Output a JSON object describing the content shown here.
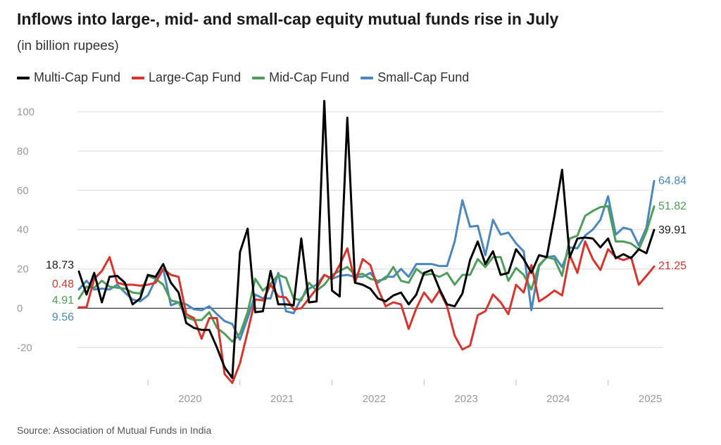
{
  "chart_data": {
    "type": "line",
    "title": "Inflows into large-, mid- and small-cap equity mutual funds rise in July",
    "subtitle": "(in billion rupees)",
    "source": "Source: Association of Mutual Funds in India",
    "ylim": [
      -38,
      105
    ],
    "yticks": [
      {
        "value": 100,
        "label": "100"
      },
      {
        "value": 80,
        "label": "80"
      },
      {
        "value": 60,
        "label": "60"
      },
      {
        "value": 40,
        "label": "40"
      },
      {
        "value": 20,
        "label": "20"
      },
      {
        "value": 0,
        "label": "0"
      },
      {
        "value": -20,
        "label": "-20"
      }
    ],
    "xticks": [
      "2020",
      "2021",
      "2022",
      "2023",
      "2024",
      "2025"
    ],
    "start": "2019-04",
    "end": "2025-07",
    "grid": true,
    "legend_position": "top-left",
    "series": [
      {
        "name": "Multi-Cap Fund",
        "color": "#000000",
        "start_label": "18.73",
        "end_label": "39.91",
        "values": [
          18.7,
          7,
          18,
          3,
          16,
          16.5,
          13,
          2,
          5,
          17,
          16,
          22.5,
          13,
          8,
          -7.5,
          -10,
          -11,
          -11,
          -20,
          -30,
          -35.5,
          28.5,
          40.5,
          -2,
          -1.5,
          19,
          2,
          2,
          1.5,
          35.5,
          3,
          3.5,
          105.5,
          9,
          6,
          97,
          13,
          12,
          10,
          5,
          3.5,
          6.5,
          8,
          2,
          7,
          18,
          19.5,
          10,
          2,
          1,
          7.5,
          24.5,
          34,
          22.5,
          29,
          17,
          18,
          30,
          25,
          18,
          27,
          26,
          47,
          70.5,
          26,
          35.5,
          36,
          35.5,
          31,
          35.5,
          25.5,
          27.5,
          25.5,
          30,
          28,
          39.9
        ]
      },
      {
        "name": "Large-Cap Fund",
        "color": "#d9342b",
        "start_label": "0.48",
        "end_label": "21.25",
        "values": [
          0.5,
          0.5,
          15,
          19,
          26,
          13,
          12,
          12,
          11.5,
          12,
          13,
          20,
          17,
          16,
          -3,
          -5,
          -15.5,
          -5,
          -5,
          -33.5,
          -38,
          -28,
          -12,
          4.5,
          4,
          12,
          6,
          5.5,
          -0.5,
          0,
          5,
          10,
          17,
          15,
          22,
          30.5,
          13,
          25,
          22,
          10,
          1,
          3,
          2,
          -10.5,
          0,
          8,
          3,
          9,
          1,
          -14,
          -21,
          -19,
          -3.5,
          -1.5,
          7,
          3,
          -3,
          12,
          8,
          22,
          3.5,
          6,
          9,
          6.5,
          27,
          18,
          34,
          25,
          19.5,
          30,
          26,
          24.5,
          26,
          12,
          16.5,
          21.25
        ]
      },
      {
        "name": "Mid-Cap Fund",
        "color": "#4e9e58",
        "start_label": "4.91",
        "end_label": "51.82",
        "values": [
          4.9,
          11,
          10.5,
          14,
          11,
          10.5,
          10,
          8,
          7.5,
          16.5,
          15,
          12,
          4,
          3,
          -4.5,
          -6,
          -6,
          -2,
          -10,
          -13,
          -17,
          -13,
          -2,
          15,
          9,
          12.5,
          17,
          15.5,
          5,
          4,
          13,
          9,
          12,
          17,
          19,
          21,
          17,
          17.5,
          15,
          14,
          15,
          21,
          14,
          13,
          20,
          17,
          17.5,
          16,
          18,
          12,
          17,
          17,
          25,
          21,
          26,
          26,
          14,
          20.5,
          17,
          9.5,
          22,
          26,
          25,
          16.5,
          35.5,
          37,
          47,
          49.5,
          51.5,
          52,
          34,
          34,
          33,
          30,
          39,
          51.8
        ]
      },
      {
        "name": "Small-Cap Fund",
        "color": "#4a86c0",
        "start_label": "9.56",
        "end_label": "64.84",
        "values": [
          9.6,
          14,
          9.5,
          10,
          9.5,
          12,
          8,
          4.5,
          3.5,
          6.5,
          14.5,
          20,
          1.5,
          3,
          2,
          -0.5,
          -1,
          1,
          -3,
          -6.5,
          -8,
          -16,
          -5,
          7,
          5,
          5,
          18,
          -1.5,
          -2.5,
          5,
          10,
          12,
          17,
          15,
          16.5,
          17,
          16,
          16,
          18,
          13,
          16,
          16,
          20,
          16,
          22.5,
          22.5,
          22.5,
          21.5,
          21.5,
          34,
          55,
          41.5,
          42,
          27,
          45,
          37.5,
          38.5,
          33,
          29,
          -1,
          21.5,
          26,
          26.5,
          21,
          31,
          30.5,
          37,
          40,
          45,
          57,
          37.5,
          41,
          40,
          32,
          41,
          64.8
        ]
      }
    ]
  }
}
